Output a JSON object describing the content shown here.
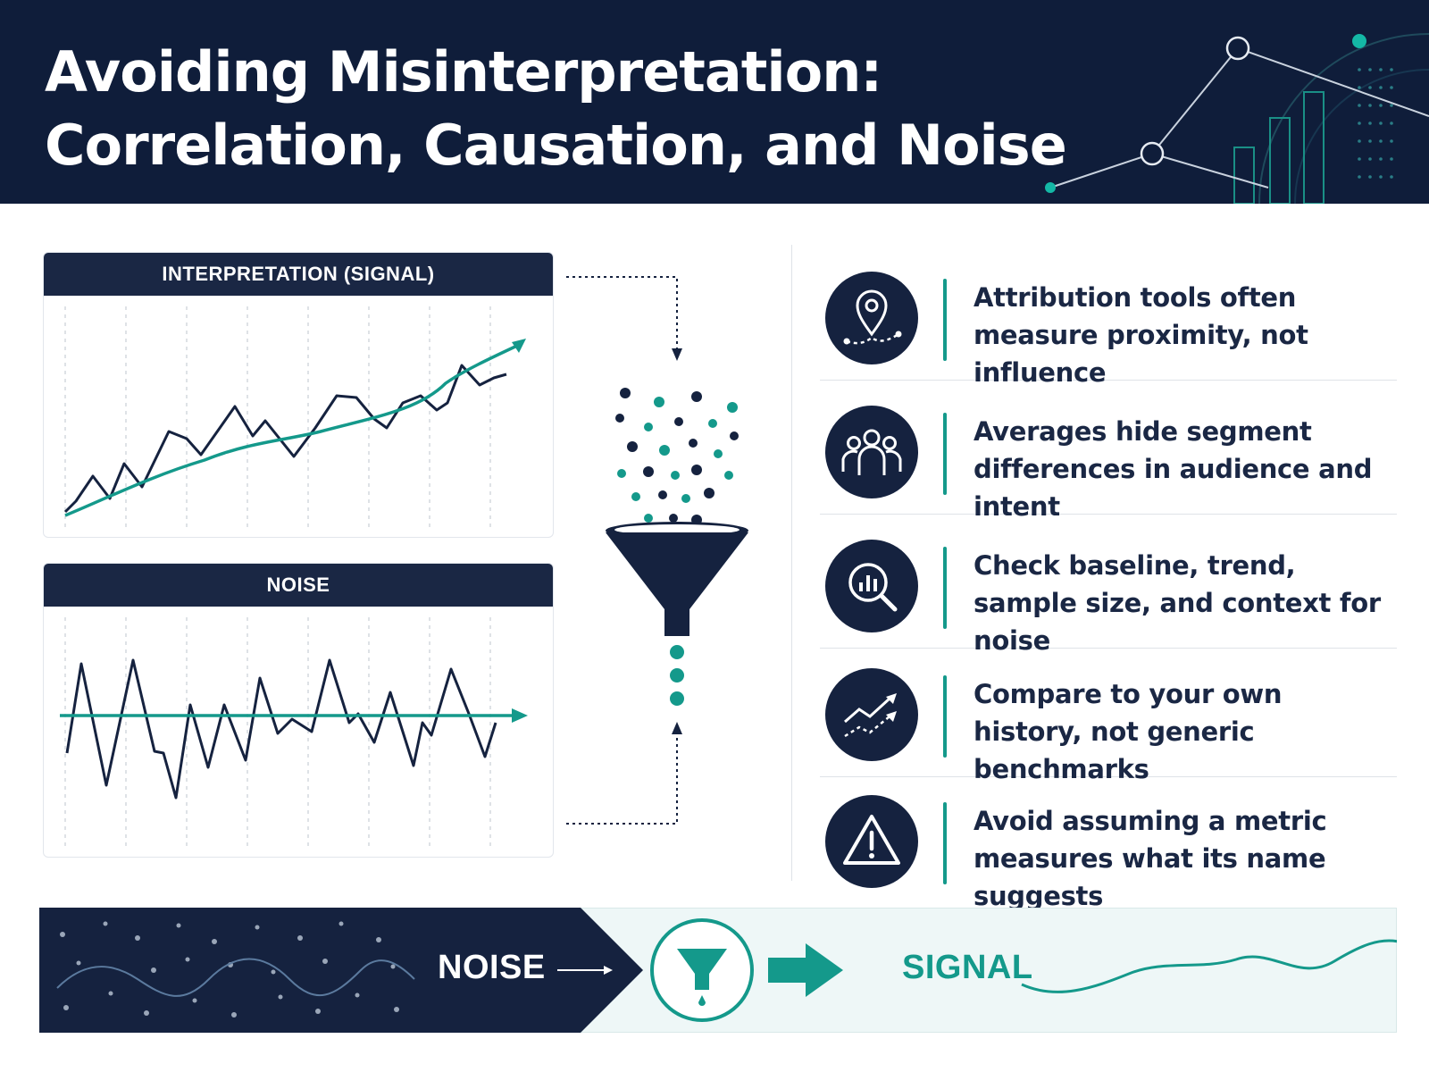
{
  "header": {
    "title": "Avoiding Misinterpretation: Correlation, Causation, and Noise"
  },
  "charts": {
    "signal_title": "INTERPRETATION (SIGNAL)",
    "noise_title": "NOISE"
  },
  "tips": [
    {
      "icon": "location-path-icon",
      "text": "Attribution tools often measure proximity, not influence"
    },
    {
      "icon": "people-group-icon",
      "text": "Averages hide segment differences in audience and intent"
    },
    {
      "icon": "magnifier-chart-icon",
      "text": "Check baseline, trend, sample size, and context for noise"
    },
    {
      "icon": "trend-compare-icon",
      "text": "Compare to your own history, not generic benchmarks"
    },
    {
      "icon": "warning-triangle-icon",
      "text": "Avoid assuming a metric measures what its name suggests"
    }
  ],
  "banner": {
    "noise_label": "NOISE",
    "signal_label": "SIGNAL"
  },
  "colors": {
    "navy": "#0f1d3a",
    "panel_header": "#1a2744",
    "teal": "#14998b",
    "light_teal_bg": "#eef7f7"
  }
}
